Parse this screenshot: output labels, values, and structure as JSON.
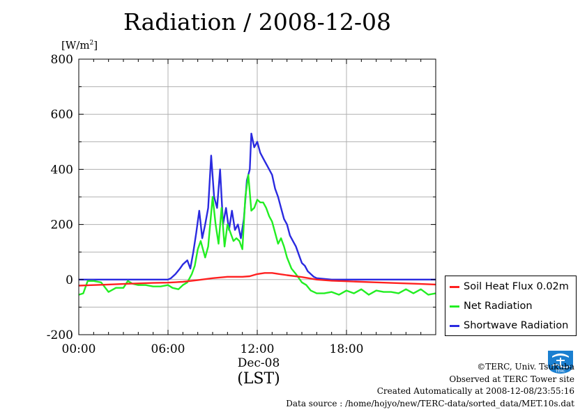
{
  "chart_data": {
    "type": "line",
    "title": "Radiation / 2008-12-08",
    "ylabel": "[W/m",
    "ylabel_sup": "2",
    "ylabel_close": "]",
    "xlabel": "(LST)",
    "x_sub_label": "Dec-08",
    "xlim_hours": [
      0,
      24
    ],
    "ylim": [
      -200,
      800
    ],
    "y_ticks": [
      {
        "value": 800,
        "label": "800"
      },
      {
        "value": 600,
        "label": "600"
      },
      {
        "value": 400,
        "label": "400"
      },
      {
        "value": 200,
        "label": "200"
      },
      {
        "value": 0,
        "label": "0"
      },
      {
        "value": -200,
        "label": "-200"
      }
    ],
    "x_ticks": [
      {
        "value": 0,
        "label": "00:00"
      },
      {
        "value": 6,
        "label": "06:00"
      },
      {
        "value": 12,
        "label": "12:00"
      },
      {
        "value": 18,
        "label": "18:00"
      }
    ],
    "grid": true,
    "legend_position": "bottom-right-outside",
    "series": [
      {
        "name": "Soil Heat Flux 0.02m",
        "color": "#ff2020",
        "x": [
          0,
          1,
          2,
          3,
          4,
          5,
          6,
          7,
          8,
          9,
          10,
          11,
          11.5,
          12,
          12.5,
          13,
          13.5,
          14,
          15,
          16,
          17,
          18,
          19,
          20,
          21,
          22,
          23,
          24
        ],
        "y": [
          -22,
          -20,
          -18,
          -16,
          -14,
          -12,
          -11,
          -8,
          -2,
          5,
          10,
          10,
          12,
          20,
          24,
          24,
          20,
          16,
          9,
          0,
          -4,
          -6,
          -8,
          -10,
          -12,
          -14,
          -16,
          -18
        ]
      },
      {
        "name": "Net Radiation",
        "color": "#22ee22",
        "x": [
          0,
          0.3,
          0.6,
          1,
          1.5,
          2,
          2.5,
          3,
          3.3,
          3.6,
          4,
          4.5,
          5,
          5.5,
          6,
          6.3,
          6.7,
          7,
          7.3,
          7.6,
          7.8,
          8,
          8.2,
          8.5,
          8.7,
          9,
          9.2,
          9.4,
          9.6,
          9.8,
          10,
          10.2,
          10.4,
          10.6,
          10.8,
          11,
          11.2,
          11.4,
          11.6,
          11.8,
          12,
          12.2,
          12.4,
          12.6,
          12.8,
          13,
          13.2,
          13.4,
          13.6,
          13.8,
          14,
          14.3,
          14.6,
          15,
          15.3,
          15.6,
          16,
          16.5,
          17,
          17.5,
          18,
          18.5,
          19,
          19.5,
          20,
          20.5,
          21,
          21.5,
          22,
          22.5,
          23,
          23.5,
          24
        ],
        "y": [
          -55,
          -50,
          -5,
          -5,
          -10,
          -45,
          -30,
          -30,
          -5,
          -15,
          -20,
          -20,
          -25,
          -25,
          -20,
          -30,
          -35,
          -20,
          -10,
          20,
          50,
          110,
          140,
          80,
          120,
          300,
          200,
          130,
          260,
          120,
          200,
          170,
          140,
          150,
          140,
          110,
          300,
          380,
          250,
          260,
          290,
          280,
          280,
          260,
          230,
          210,
          170,
          130,
          150,
          120,
          80,
          40,
          20,
          -10,
          -20,
          -40,
          -50,
          -50,
          -45,
          -55,
          -40,
          -50,
          -35,
          -55,
          -40,
          -45,
          -45,
          -50,
          -35,
          -50,
          -35,
          -55,
          -50
        ]
      },
      {
        "name": "Shortwave Radiation",
        "color": "#2a2ae0",
        "x": [
          0,
          1,
          2,
          3,
          4,
          5,
          6,
          6.2,
          6.5,
          6.8,
          7,
          7.3,
          7.5,
          7.7,
          7.9,
          8.1,
          8.3,
          8.5,
          8.7,
          8.9,
          9.1,
          9.3,
          9.5,
          9.7,
          9.9,
          10.1,
          10.3,
          10.5,
          10.7,
          10.9,
          11.1,
          11.3,
          11.5,
          11.6,
          11.8,
          12,
          12.2,
          12.4,
          12.6,
          12.8,
          13,
          13.2,
          13.4,
          13.6,
          13.8,
          14,
          14.2,
          14.4,
          14.6,
          14.8,
          15,
          15.2,
          15.4,
          15.6,
          15.8,
          16,
          17,
          18,
          19,
          20,
          21,
          22,
          23,
          24
        ],
        "y": [
          0,
          0,
          0,
          0,
          0,
          0,
          0,
          5,
          20,
          40,
          55,
          70,
          40,
          100,
          170,
          250,
          150,
          200,
          260,
          450,
          300,
          260,
          400,
          200,
          260,
          180,
          250,
          180,
          200,
          150,
          220,
          360,
          400,
          530,
          480,
          500,
          460,
          440,
          420,
          400,
          380,
          330,
          300,
          260,
          220,
          200,
          160,
          140,
          120,
          90,
          60,
          50,
          30,
          20,
          10,
          5,
          0,
          0,
          0,
          0,
          0,
          0,
          0,
          0
        ]
      }
    ]
  },
  "credits": {
    "copyright": "©TERC, Univ. Tsukuba",
    "observed": "Observed at TERC Tower site",
    "created": "Created Automatically at 2008-12-08/23:55:16",
    "source": "Data source : /home/hojyo/new/TERC-data/sorted_data/MET.10s.dat"
  },
  "logo": {
    "text": "TERC",
    "color": "#1a7fd0"
  }
}
